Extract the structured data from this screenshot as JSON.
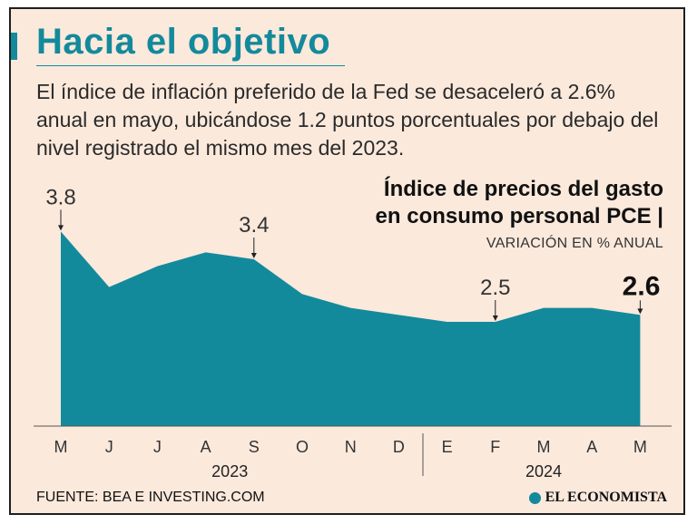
{
  "header": {
    "title": "Hacia el objetivo",
    "subtitle": "El índice de inflación preferido de la Fed se desaceleró a 2.6% anual en mayo, ubicándose 1.2 puntos porcentuales por debajo del nivel registrado el mismo mes del 2023."
  },
  "chart_title": {
    "line1": "Índice de precios del gasto",
    "line2": "en consumo personal PCE |",
    "unit": "VARIACIÓN EN % ANUAL"
  },
  "footer": {
    "source": "FUENTE: BEA E INVESTING.COM",
    "brand": "EL ECONOMISTA"
  },
  "colors": {
    "accent": "#138a9b",
    "background": "#fbe9dc",
    "area": "#138a9b"
  },
  "chart_data": {
    "type": "area",
    "title": "Índice de precios del gasto en consumo personal PCE",
    "ylabel": "VARIACIÓN EN % ANUAL",
    "categories": [
      "M",
      "J",
      "J",
      "A",
      "S",
      "O",
      "N",
      "D",
      "E",
      "F",
      "M",
      "A",
      "M"
    ],
    "years": [
      {
        "label": "2023",
        "from": 0,
        "to": 7
      },
      {
        "label": "2024",
        "from": 8,
        "to": 12
      }
    ],
    "values": [
      3.8,
      3.0,
      3.3,
      3.5,
      3.4,
      2.9,
      2.7,
      2.6,
      2.5,
      2.5,
      2.7,
      2.7,
      2.6
    ],
    "ylim": [
      1.0,
      4.0
    ],
    "annotations": [
      {
        "index": 0,
        "text": "3.8"
      },
      {
        "index": 4,
        "text": "3.4"
      },
      {
        "index": 9,
        "text": "2.5"
      },
      {
        "index": 12,
        "text": "2.6",
        "emphasis": true
      }
    ]
  }
}
